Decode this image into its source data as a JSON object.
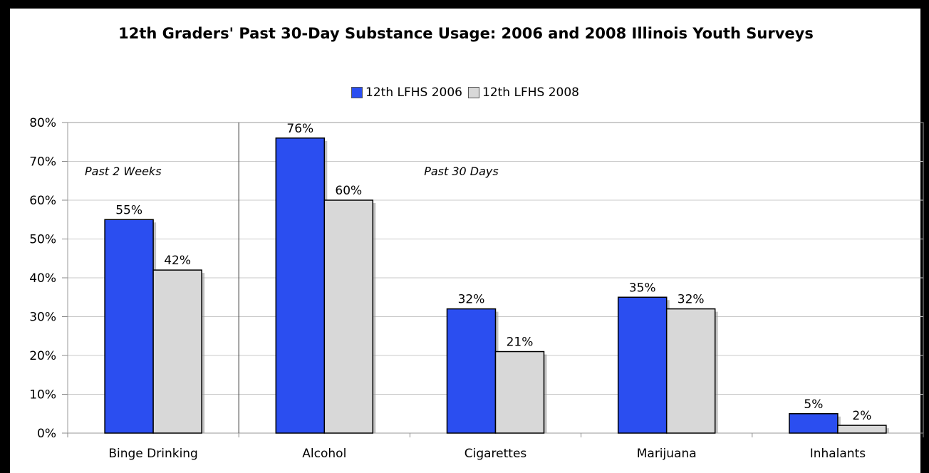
{
  "chart_data": {
    "type": "bar",
    "title": "12th Graders' Past 30-Day Substance Usage:  2006 and 2008 Illinois Youth Surveys",
    "categories": [
      "Binge Drinking",
      "Alcohol",
      "Cigarettes",
      "Marijuana",
      "Inhalants"
    ],
    "series": [
      {
        "name": "12th LFHS 2006",
        "values": [
          55,
          76,
          32,
          35,
          5
        ],
        "labels": [
          "55%",
          "76%",
          "32%",
          "35%",
          "5%"
        ],
        "color": "#2b4ef0"
      },
      {
        "name": "12th LFHS 2008",
        "values": [
          42,
          60,
          21,
          32,
          2
        ],
        "labels": [
          "42%",
          "60%",
          "21%",
          "32%",
          "2%"
        ],
        "color": "#d8d8d8"
      }
    ],
    "ylim": [
      0,
      80
    ],
    "yticks": [
      "0%",
      "10%",
      "20%",
      "30%",
      "40%",
      "50%",
      "60%",
      "70%",
      "80%"
    ],
    "xlabel": "",
    "ylabel": "",
    "grid": true,
    "legend": "top-center",
    "annotations": [
      "Past 2 Weeks",
      "Past 30 Days"
    ]
  }
}
